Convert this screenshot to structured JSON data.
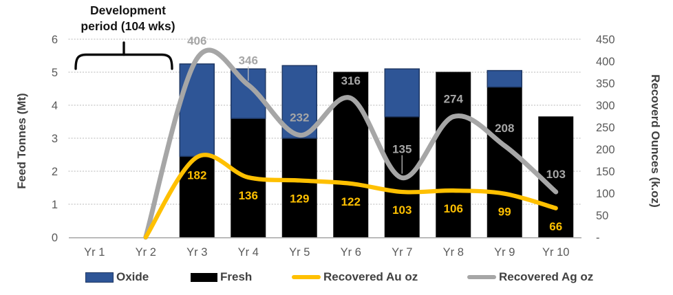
{
  "annotation": {
    "line1": "Development",
    "line2": "period (104 wks)"
  },
  "axis_titles": {
    "left": "Feed Tonnes (Mt)",
    "right": "Recoverd Ounces (k.oz)"
  },
  "legend": {
    "items": [
      {
        "label": "Oxide",
        "type": "bar",
        "color": "#2E5596"
      },
      {
        "label": "Fresh",
        "type": "bar",
        "color": "#000000"
      },
      {
        "label": "Recovered Au oz",
        "type": "line",
        "color": "#FFC000"
      },
      {
        "label": "Recovered Ag oz",
        "type": "line",
        "color": "#A6A6A6"
      }
    ]
  },
  "chart_data": {
    "type": "bar",
    "subtype": "stacked-bars-with-smooth-lines",
    "title": "",
    "categories": [
      "Yr 1",
      "Yr 2",
      "Yr 3",
      "Yr 4",
      "Yr 5",
      "Yr 6",
      "Yr 7",
      "Yr 8",
      "Yr 9",
      "Yr 10"
    ],
    "series": [
      {
        "name": "Oxide",
        "type": "bar",
        "axis": "left",
        "color": "#2E5596",
        "values": [
          0,
          0,
          2.8,
          1.5,
          2.2,
          0,
          1.45,
          0,
          0.5,
          0
        ]
      },
      {
        "name": "Fresh",
        "type": "bar",
        "axis": "left",
        "color": "#000000",
        "values": [
          0,
          0,
          2.45,
          3.6,
          3.0,
          5.0,
          3.65,
          5.0,
          4.55,
          3.65
        ]
      },
      {
        "name": "Recovered Au oz",
        "type": "line",
        "axis": "right",
        "color": "#FFC000",
        "values": [
          null,
          0,
          182,
          136,
          129,
          122,
          103,
          106,
          99,
          66
        ]
      },
      {
        "name": "Recovered Ag oz",
        "type": "line",
        "axis": "right",
        "color": "#A6A6A6",
        "values": [
          null,
          0,
          406,
          346,
          232,
          316,
          135,
          274,
          208,
          103
        ]
      }
    ],
    "data_labels": {
      "Recovered Au oz": [
        "182",
        "136",
        "129",
        "122",
        "103",
        "106",
        "99",
        "66"
      ],
      "Recovered Ag oz": [
        "406",
        "346",
        "232",
        "316",
        "135",
        "274",
        "208",
        "103"
      ],
      "leader_lines_at": [
        "Yr 4",
        "Yr 7"
      ]
    },
    "axes": {
      "left": {
        "label": "Feed Tonnes (Mt)",
        "min": 0,
        "max": 6,
        "ticks": [
          "0",
          "1",
          "2",
          "3",
          "4",
          "5",
          "6"
        ]
      },
      "right": {
        "label": "Recoverd Ounces (k.oz)",
        "min": 0,
        "max": 450,
        "tick_step": 50,
        "ticks": [
          "-",
          "50",
          "100",
          "150",
          "200",
          "250",
          "300",
          "350",
          "400",
          "450"
        ]
      }
    },
    "grid": {
      "horizontal": true,
      "style": "dotted",
      "color": "#C4C4C4"
    },
    "legend_position": "bottom",
    "annotation": {
      "text": "Development period (104 wks)",
      "spans_categories": [
        "Yr 1",
        "Yr 2"
      ]
    }
  },
  "colors": {
    "oxide": "#2E5596",
    "oxide_border": "#1F3864",
    "fresh": "#000000",
    "au_line": "#FFC000",
    "ag_line": "#A6A6A6",
    "axis_text": "#595959",
    "baseline": "#A6A6A6",
    "gridline": "#C4C4C4"
  }
}
